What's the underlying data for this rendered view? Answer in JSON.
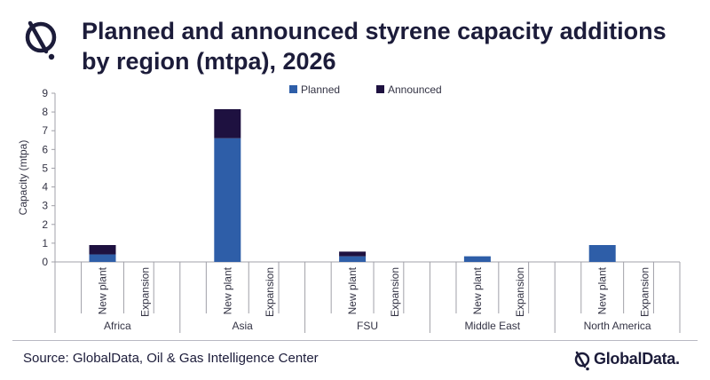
{
  "title": "Planned and announced styrene capacity additions by region (mtpa), 2026",
  "source": "Source: GlobalData, Oil & Gas Intelligence Center",
  "brand": "GlobalData.",
  "colors": {
    "planned": "#2e5ea8",
    "announced": "#1e1140",
    "axis": "#a0a0a8",
    "title": "#1c1c3a"
  },
  "icons": {
    "header": "globaldata-logo-icon",
    "brand": "globaldata-logo-icon"
  },
  "chart_data": {
    "type": "bar",
    "stacked": true,
    "ylabel": "Capacity (mtpa)",
    "ylim": [
      0,
      9
    ],
    "yticks": [
      0,
      1,
      2,
      3,
      4,
      5,
      6,
      7,
      8,
      9
    ],
    "grid": false,
    "legend_position": "top",
    "groups": [
      "Africa",
      "Asia",
      "FSU",
      "Middle East",
      "North America"
    ],
    "subcategories": [
      "New plant",
      "Expansion"
    ],
    "series": [
      {
        "name": "Planned",
        "values": [
          [
            0.4,
            0
          ],
          [
            6.6,
            0
          ],
          [
            0.3,
            0
          ],
          [
            0.3,
            0
          ],
          [
            0.9,
            0
          ]
        ]
      },
      {
        "name": "Announced",
        "values": [
          [
            0.5,
            0
          ],
          [
            1.55,
            0
          ],
          [
            0.25,
            0
          ],
          [
            0,
            0
          ],
          [
            0,
            0
          ]
        ]
      }
    ]
  }
}
